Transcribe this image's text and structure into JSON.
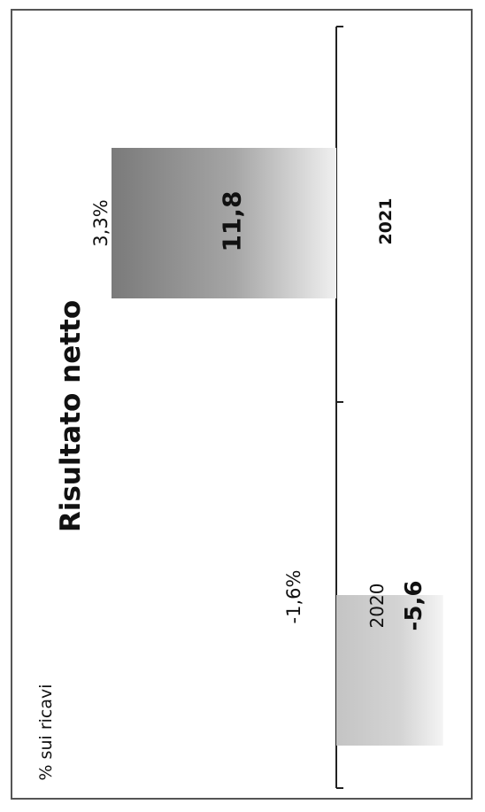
{
  "chart_data": {
    "type": "bar",
    "orientation": "rotated-90-ccw",
    "title": "Risultato netto",
    "secondary_label": "% sui ricavi",
    "categories": [
      "2020",
      "2021"
    ],
    "values": [
      -5.6,
      11.8
    ],
    "value_labels": [
      "-5,6",
      "11,8"
    ],
    "pct_labels": [
      "-1,6%",
      "3,3%"
    ],
    "ylim": [
      -5.6,
      11.8
    ],
    "grid": false,
    "legend": "none",
    "bar_colors": [
      "#c8c8c8",
      "#8a8a8a"
    ]
  }
}
